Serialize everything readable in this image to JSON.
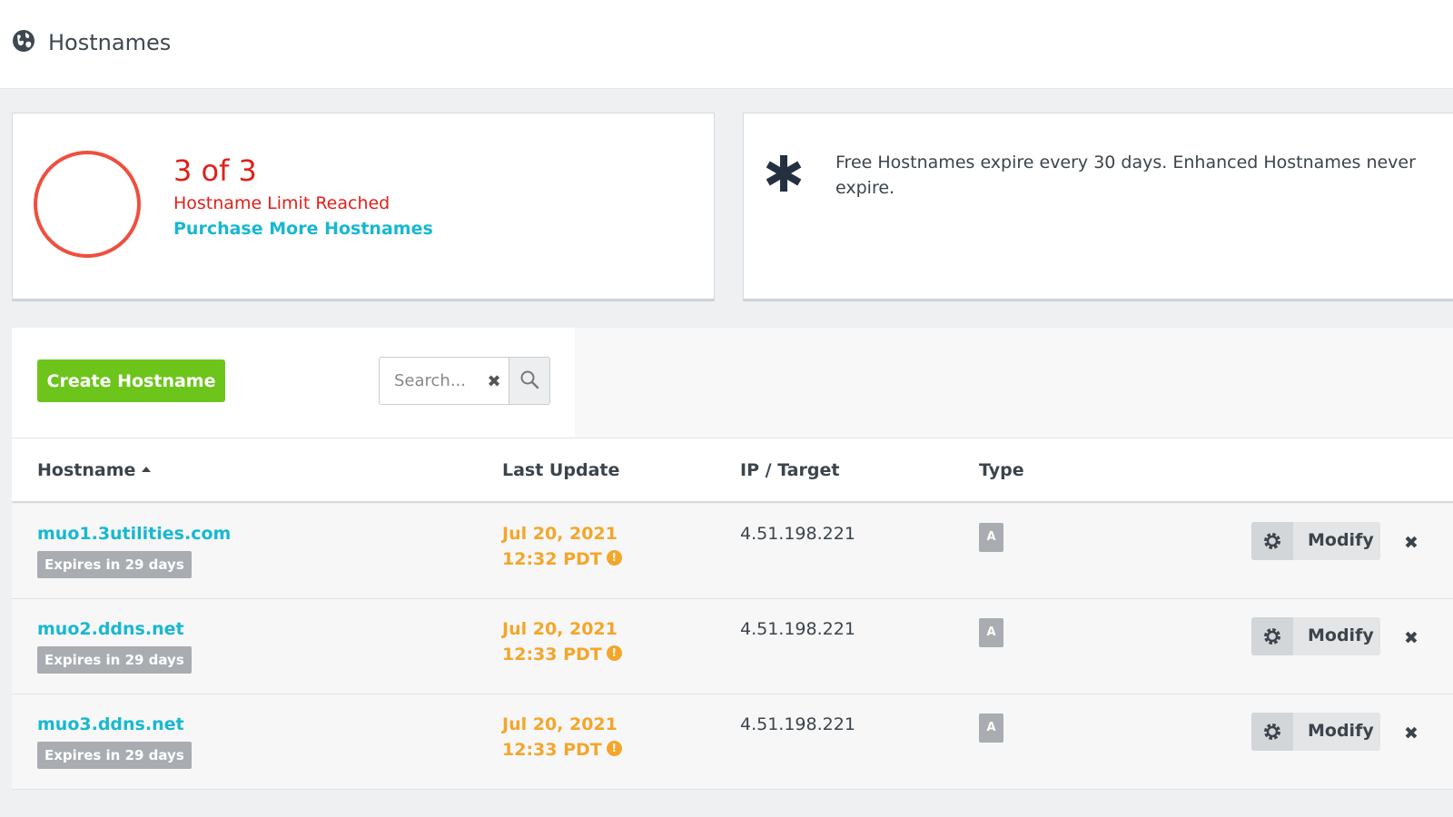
{
  "header": {
    "title": "Hostnames",
    "icon": "globe-icon"
  },
  "limit_card": {
    "count": "3 of 3",
    "status": "Hostname Limit Reached",
    "link": "Purchase More Hostnames",
    "ring_color": "#ef4f3f",
    "ring_fill_fraction": 1.0
  },
  "note_card": {
    "icon": "asterisk-icon",
    "text": "Free Hostnames expire every 30 days. Enhanced Hostnames never expire."
  },
  "toolbar": {
    "create_label": "Create Hostname",
    "search_placeholder": "Search...",
    "clear_symbol": "✖"
  },
  "table": {
    "columns": {
      "hostname": "Hostname",
      "last_update": "Last Update",
      "ip_target": "IP / Target",
      "type": "Type"
    },
    "sort": "hostname-ascending",
    "rows": [
      {
        "hostname": "muo1.3utilities.com",
        "expires": "Expires in 29 days",
        "date": "Jul 20, 2021",
        "time": "12:32 PDT",
        "warn": "!",
        "ip": "4.51.198.221",
        "type": "A",
        "modify": "Modify",
        "delete": "✖"
      },
      {
        "hostname": "muo2.ddns.net",
        "expires": "Expires in 29 days",
        "date": "Jul 20, 2021",
        "time": "12:33 PDT",
        "warn": "!",
        "ip": "4.51.198.221",
        "type": "A",
        "modify": "Modify",
        "delete": "✖"
      },
      {
        "hostname": "muo3.ddns.net",
        "expires": "Expires in 29 days",
        "date": "Jul 20, 2021",
        "time": "12:33 PDT",
        "warn": "!",
        "ip": "4.51.198.221",
        "type": "A",
        "modify": "Modify",
        "delete": "✖"
      }
    ]
  },
  "colors": {
    "accent_link": "#18b8d0",
    "alert_red": "#e0201a",
    "create_green": "#6dc51b",
    "warning_orange": "#f4a62a"
  }
}
